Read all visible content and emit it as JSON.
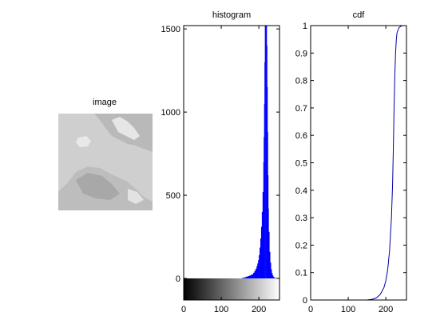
{
  "figure": {
    "background": "#ffffff",
    "foreground": "#000000"
  },
  "chart_data": [
    {
      "type": "image",
      "title": "image",
      "description_colors": {
        "base": "#c8c8c8",
        "light": "#e4e4e4",
        "dark": "#8a8a8a"
      }
    },
    {
      "type": "bar",
      "title": "histogram",
      "xlabel": "",
      "ylabel": "",
      "xlim": [
        0,
        255
      ],
      "ylim": [
        0,
        1520
      ],
      "xticks": [
        "0",
        "100",
        "200"
      ],
      "xtick_values": [
        0,
        100,
        200
      ],
      "yticks": [
        "0",
        "500",
        "1000",
        "1500"
      ],
      "ytick_values": [
        0,
        500,
        1000,
        1500
      ],
      "color": "#0000ff",
      "colorbar": "grayscale 0-255",
      "x": [
        150,
        155,
        160,
        165,
        170,
        175,
        180,
        185,
        188,
        191,
        194,
        196,
        198,
        200,
        202,
        204,
        206,
        208,
        210,
        212,
        213,
        214,
        215,
        216,
        217,
        218,
        219,
        220,
        221,
        222,
        223,
        224,
        225,
        226,
        228,
        230,
        232,
        234,
        236,
        238,
        240,
        243,
        246,
        250
      ],
      "values": [
        0,
        3,
        6,
        10,
        14,
        18,
        24,
        34,
        44,
        58,
        74,
        90,
        110,
        140,
        185,
        240,
        310,
        400,
        520,
        700,
        850,
        1050,
        1300,
        1520,
        1520,
        1520,
        1520,
        1520,
        1400,
        1150,
        880,
        620,
        420,
        280,
        160,
        95,
        55,
        32,
        18,
        10,
        5,
        2,
        1,
        0
      ]
    },
    {
      "type": "line",
      "title": "cdf",
      "xlabel": "",
      "ylabel": "",
      "xlim": [
        0,
        255
      ],
      "ylim": [
        0,
        1
      ],
      "xticks": [
        "0",
        "100",
        "200"
      ],
      "xtick_values": [
        0,
        100,
        200
      ],
      "yticks": [
        "0",
        "0.1",
        "0.2",
        "0.3",
        "0.4",
        "0.5",
        "0.6",
        "0.7",
        "0.8",
        "0.9",
        "1"
      ],
      "ytick_values": [
        0,
        0.1,
        0.2,
        0.3,
        0.4,
        0.5,
        0.6,
        0.7,
        0.8,
        0.9,
        1
      ],
      "color": "#0000aa",
      "x": [
        0,
        150,
        165,
        175,
        185,
        195,
        200,
        205,
        210,
        215,
        218,
        220,
        222,
        224,
        226,
        228,
        230,
        235,
        240,
        245,
        255
      ],
      "y": [
        0,
        0,
        0.003,
        0.008,
        0.02,
        0.045,
        0.07,
        0.11,
        0.18,
        0.3,
        0.42,
        0.55,
        0.7,
        0.82,
        0.9,
        0.95,
        0.975,
        0.992,
        0.998,
        1,
        1
      ]
    }
  ]
}
